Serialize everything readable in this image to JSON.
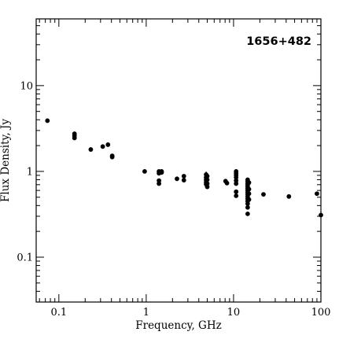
{
  "chart_data": {
    "type": "scatter",
    "title": "1656+482",
    "xlabel": "Frequency, GHz",
    "ylabel": "Flux Density, Jy",
    "xscale": "log",
    "yscale": "log",
    "xlim": [
      0.055,
      100
    ],
    "ylim": [
      0.03,
      60
    ],
    "xticks": [
      {
        "value": 0.1,
        "label": "0.1"
      },
      {
        "value": 1,
        "label": "1"
      },
      {
        "value": 10,
        "label": "10"
      },
      {
        "value": 100,
        "label": "100"
      }
    ],
    "yticks": [
      {
        "value": 0.1,
        "label": "0.1"
      },
      {
        "value": 1,
        "label": "1"
      },
      {
        "value": 10,
        "label": "10"
      }
    ],
    "grid": false,
    "marker_color": "#000000",
    "points": [
      [
        0.074,
        3.9
      ],
      [
        0.151,
        2.75
      ],
      [
        0.151,
        2.6
      ],
      [
        0.151,
        2.45
      ],
      [
        0.232,
        1.8
      ],
      [
        0.318,
        1.95
      ],
      [
        0.365,
        2.05
      ],
      [
        0.408,
        1.52
      ],
      [
        0.408,
        1.47
      ],
      [
        0.96,
        1.0
      ],
      [
        1.4,
        1.0
      ],
      [
        1.4,
        0.95
      ],
      [
        1.4,
        0.78
      ],
      [
        1.4,
        0.72
      ],
      [
        1.5,
        1.0
      ],
      [
        1.5,
        0.97
      ],
      [
        2.25,
        0.82
      ],
      [
        2.7,
        0.88
      ],
      [
        2.7,
        0.79
      ],
      [
        4.85,
        0.92
      ],
      [
        4.85,
        0.85
      ],
      [
        4.85,
        0.8
      ],
      [
        4.85,
        0.75
      ],
      [
        4.85,
        0.71
      ],
      [
        5.0,
        0.88
      ],
      [
        5.0,
        0.8
      ],
      [
        5.0,
        0.72
      ],
      [
        5.0,
        0.66
      ],
      [
        8.1,
        0.77
      ],
      [
        8.4,
        0.73
      ],
      [
        10.7,
        1.0
      ],
      [
        10.7,
        0.95
      ],
      [
        10.7,
        0.9
      ],
      [
        10.7,
        0.85
      ],
      [
        10.7,
        0.78
      ],
      [
        10.7,
        0.72
      ],
      [
        10.7,
        0.58
      ],
      [
        10.7,
        0.52
      ],
      [
        14.5,
        0.8
      ],
      [
        14.5,
        0.76
      ],
      [
        14.5,
        0.72
      ],
      [
        14.5,
        0.69
      ],
      [
        14.5,
        0.66
      ],
      [
        14.5,
        0.63
      ],
      [
        14.5,
        0.6
      ],
      [
        14.5,
        0.57
      ],
      [
        14.5,
        0.54
      ],
      [
        14.5,
        0.51
      ],
      [
        14.5,
        0.48
      ],
      [
        14.5,
        0.45
      ],
      [
        14.5,
        0.42
      ],
      [
        14.5,
        0.38
      ],
      [
        14.5,
        0.32
      ],
      [
        15.0,
        0.74
      ],
      [
        15.0,
        0.62
      ],
      [
        15.0,
        0.55
      ],
      [
        15.0,
        0.47
      ],
      [
        22.0,
        0.54
      ],
      [
        43.0,
        0.51
      ],
      [
        90.0,
        0.55
      ],
      [
        100.0,
        0.31
      ]
    ],
    "error_bars": [
      {
        "x": 4.85,
        "y": 0.92,
        "ylow": 0.84,
        "yhigh": 1.0
      }
    ]
  }
}
